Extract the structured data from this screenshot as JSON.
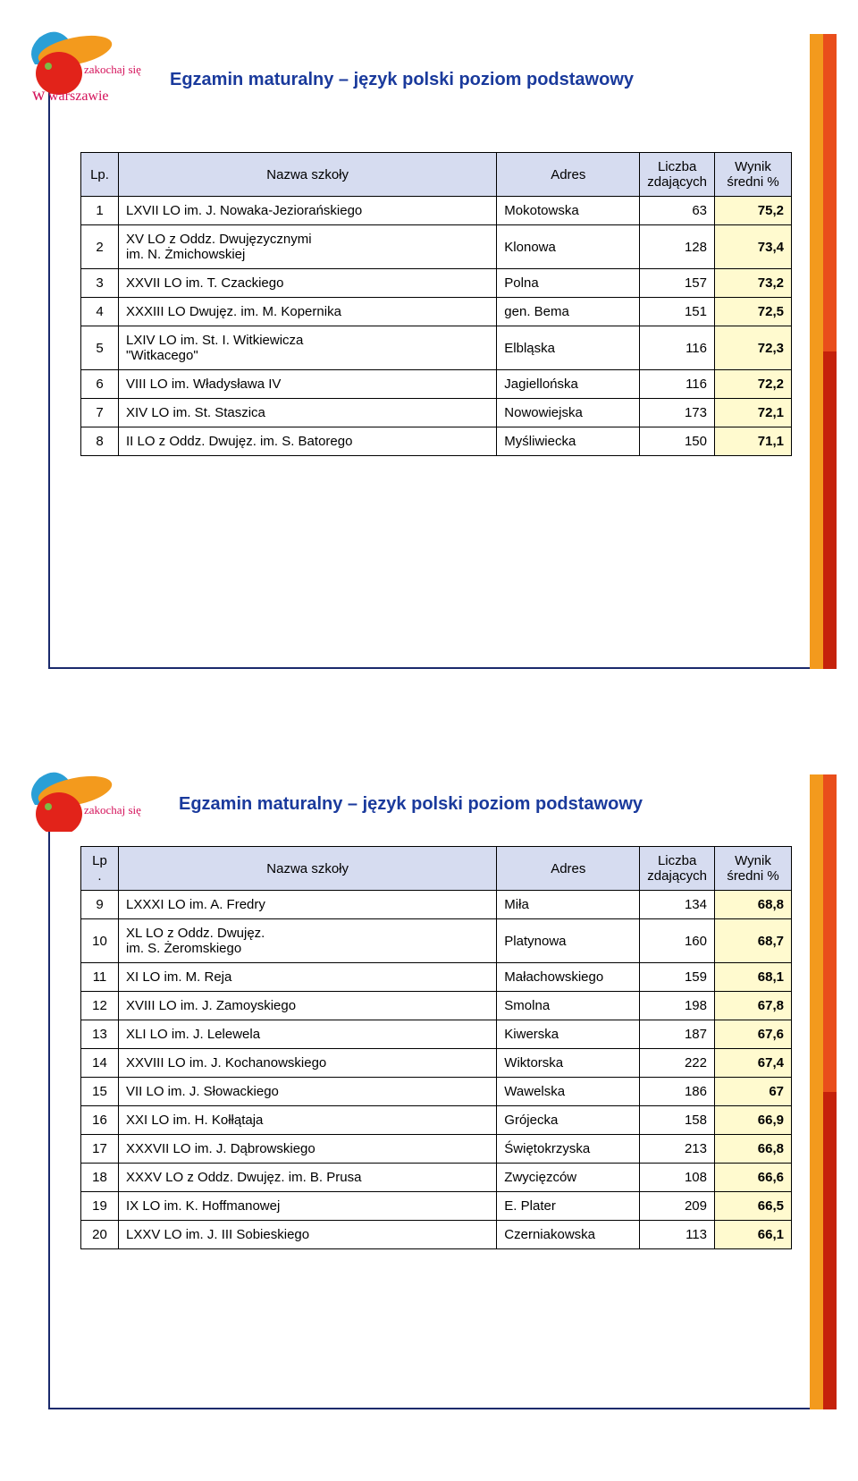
{
  "colors": {
    "frame_border": "#1a2a6c",
    "bar_orange": "#f39a1d",
    "bar_red_top": "#e94e1b",
    "bar_red_bot": "#c5220b",
    "title_color": "#1a3a9c",
    "header_bg": "#d6dcf0",
    "score_bg": "#fffacf",
    "table_border": "#000000",
    "page_bg": "#ffffff"
  },
  "logo": {
    "text_top": "zakochaj się",
    "text_bot": "warszawie",
    "text_color": "#d4125a",
    "blob_orange": "#f39a1d",
    "blob_red": "#e2231a",
    "blob_blue": "#2a9fd6"
  },
  "page1": {
    "title": "Egzamin maturalny – język polski poziom  podstawowy",
    "headers": {
      "lp": "Lp.",
      "name": "Nazwa szkoły",
      "addr": "Adres",
      "count": "Liczba zdających",
      "score": "Wynik średni %"
    },
    "rows": [
      {
        "lp": "1",
        "name": "LXVII LO im. J. Nowaka-Jeziorańskiego",
        "addr": "Mokotowska",
        "count": "63",
        "score": "75,2"
      },
      {
        "lp": "2",
        "name": "XV LO z Oddz. Dwujęzycznymi\nim. N. Żmichowskiej",
        "addr": "Klonowa",
        "count": "128",
        "score": "73,4"
      },
      {
        "lp": "3",
        "name": "XXVII LO im. T. Czackiego",
        "addr": "Polna",
        "count": "157",
        "score": "73,2"
      },
      {
        "lp": "4",
        "name": "XXXIII LO Dwujęz. im. M. Kopernika",
        "addr": "gen. Bema",
        "count": "151",
        "score": "72,5"
      },
      {
        "lp": "5",
        "name": "LXIV LO im. St. I. Witkiewicza\n\"Witkacego\"",
        "addr": "Elbląska",
        "count": "116",
        "score": "72,3"
      },
      {
        "lp": "6",
        "name": "VIII LO im. Władysława IV",
        "addr": "Jagiellońska",
        "count": "116",
        "score": "72,2"
      },
      {
        "lp": "7",
        "name": "XIV LO im. St. Staszica",
        "addr": "Nowowiejska",
        "count": "173",
        "score": "72,1"
      },
      {
        "lp": "8",
        "name": "II LO z Oddz. Dwujęz. im. S. Batorego",
        "addr": "Myśliwiecka",
        "count": "150",
        "score": "71,1"
      }
    ]
  },
  "page2": {
    "title": "Egzamin maturalny – język polski poziom  podstawowy",
    "headers": {
      "lp": "Lp\n.",
      "name": "Nazwa szkoły",
      "addr": "Adres",
      "count": "Liczba zdających",
      "score": "Wynik średni %"
    },
    "rows": [
      {
        "lp": "9",
        "name": "LXXXI LO im. A. Fredry",
        "addr": "Miła",
        "count": "134",
        "score": "68,8"
      },
      {
        "lp": "10",
        "name": "XL LO z Oddz. Dwujęz.\nim. S. Żeromskiego",
        "addr": "Platynowa",
        "count": "160",
        "score": "68,7"
      },
      {
        "lp": "11",
        "name": "XI LO im. M. Reja",
        "addr": "Małachowskiego",
        "count": "159",
        "score": "68,1"
      },
      {
        "lp": "12",
        "name": "XVIII LO im. J. Zamoyskiego",
        "addr": "Smolna",
        "count": "198",
        "score": "67,8"
      },
      {
        "lp": "13",
        "name": "XLI LO im. J. Lelewela",
        "addr": "Kiwerska",
        "count": "187",
        "score": "67,6"
      },
      {
        "lp": "14",
        "name": "XXVIII LO im. J. Kochanowskiego",
        "addr": "Wiktorska",
        "count": "222",
        "score": "67,4"
      },
      {
        "lp": "15",
        "name": "VII LO im. J. Słowackiego",
        "addr": "Wawelska",
        "count": "186",
        "score": "67"
      },
      {
        "lp": "16",
        "name": "XXI LO im. H. Kołłątaja",
        "addr": "Grójecka",
        "count": "158",
        "score": "66,9"
      },
      {
        "lp": "17",
        "name": "XXXVII LO im. J. Dąbrowskiego",
        "addr": "Świętokrzyska",
        "count": "213",
        "score": "66,8"
      },
      {
        "lp": "18",
        "name": "XXXV LO z Oddz. Dwujęz. im. B. Prusa",
        "addr": "Zwycięzców",
        "count": "108",
        "score": "66,6"
      },
      {
        "lp": "19",
        "name": "IX LO im. K.  Hoffmanowej",
        "addr": "E. Plater",
        "count": "209",
        "score": "66,5"
      },
      {
        "lp": "20",
        "name": "LXXV LO im. J. III Sobieskiego",
        "addr": "Czerniakowska",
        "count": "113",
        "score": "66,1"
      }
    ]
  }
}
